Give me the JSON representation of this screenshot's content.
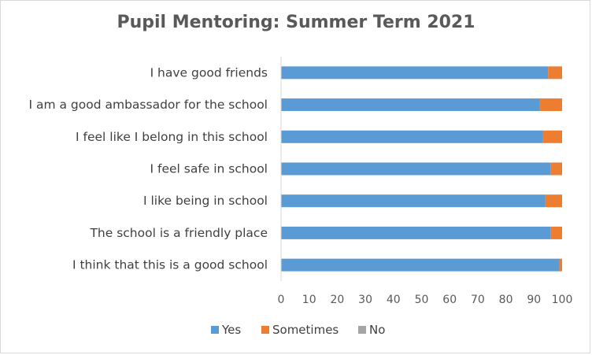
{
  "chart_data": {
    "type": "bar",
    "orientation": "horizontal",
    "stacked": true,
    "title": "Pupil Mentoring: Summer Term 2021",
    "categories": [
      "I have good friends",
      "I am a good ambassador for the school",
      "I feel like I belong in this school",
      "I feel safe in school",
      "I like being in school",
      "The school is a friendly place",
      "I think that this is a good school"
    ],
    "series": [
      {
        "name": "Yes",
        "color": "#5b9bd5",
        "values": [
          95,
          92,
          93,
          96,
          94,
          96,
          99
        ]
      },
      {
        "name": "Sometimes",
        "color": "#ed7d31",
        "values": [
          5,
          8,
          7,
          4,
          6,
          4,
          1
        ]
      },
      {
        "name": "No",
        "color": "#a5a5a5",
        "values": [
          0,
          0,
          0,
          0,
          0,
          0,
          0
        ]
      }
    ],
    "xlim": [
      0,
      100
    ],
    "xticks": [
      "0",
      "10",
      "20",
      "30",
      "40",
      "50",
      "60",
      "70",
      "80",
      "90",
      "100"
    ],
    "grid": false,
    "legend_position": "bottom"
  }
}
